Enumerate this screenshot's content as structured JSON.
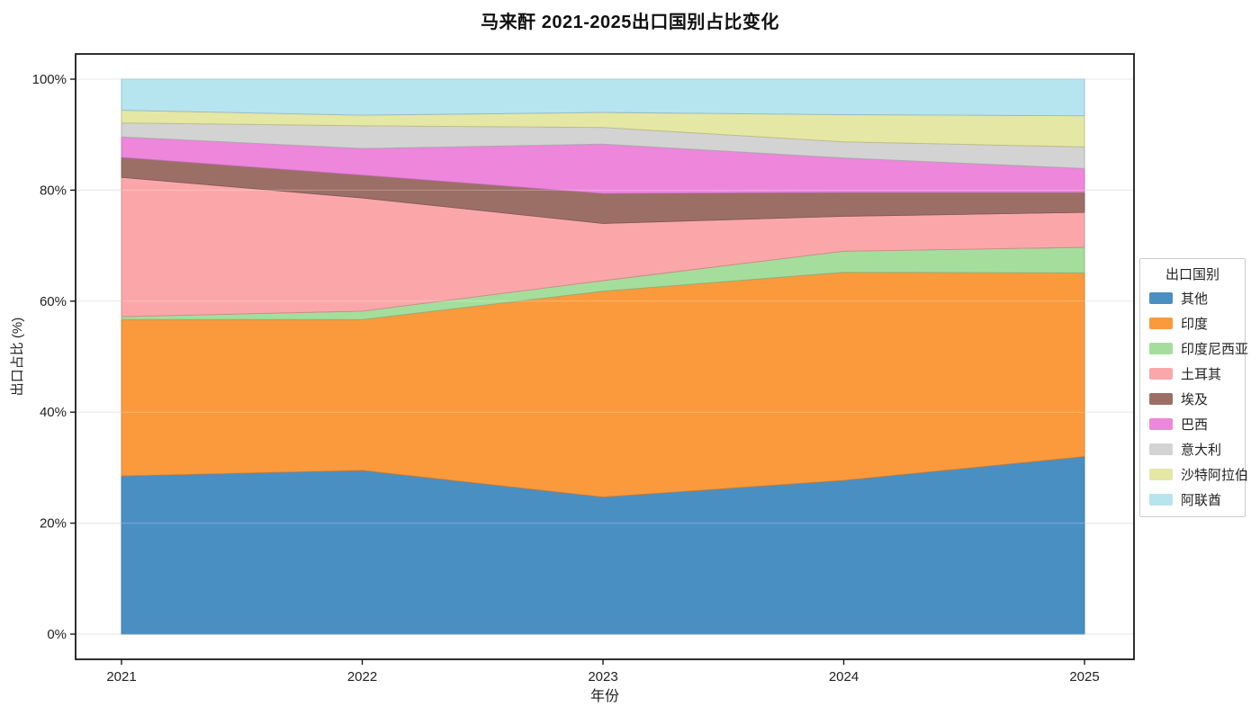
{
  "chart_data": {
    "type": "area",
    "stacked": true,
    "normalized": "100% stacked",
    "title": "马来酐 2021-2025出口国别占比变化",
    "xlabel": "年份",
    "ylabel": "出口占比 (%)",
    "legend_title": "出口国别",
    "legend_position": "right-outside",
    "grid": true,
    "categories": [
      "2021",
      "2022",
      "2023",
      "2024",
      "2025"
    ],
    "ylim": [
      0,
      100
    ],
    "ytick_labels": [
      "0%",
      "20%",
      "40%",
      "60%",
      "80%",
      "100%"
    ],
    "ytick_values": [
      0,
      20,
      40,
      60,
      80,
      100
    ],
    "series": [
      {
        "name": "其他",
        "color": "#4A8FC2",
        "values": [
          28.5,
          29.5,
          24.7,
          27.7,
          32.0
        ]
      },
      {
        "name": "印度",
        "color": "#FA9A3D",
        "values": [
          28.2,
          27.2,
          37.1,
          37.5,
          33.1
        ]
      },
      {
        "name": "印度尼西亚",
        "color": "#A5DE9C",
        "values": [
          0.5,
          1.5,
          1.9,
          3.8,
          4.6
        ]
      },
      {
        "name": "土耳其",
        "color": "#FBA7A9",
        "values": [
          25.1,
          20.4,
          10.3,
          6.3,
          6.3
        ]
      },
      {
        "name": "埃及",
        "color": "#9C6F66",
        "values": [
          3.6,
          4.1,
          5.4,
          4.3,
          3.6
        ]
      },
      {
        "name": "巴西",
        "color": "#EE86DC",
        "values": [
          3.7,
          4.8,
          8.9,
          6.2,
          4.3
        ]
      },
      {
        "name": "意大利",
        "color": "#D3D3D3",
        "values": [
          2.5,
          4.1,
          3.0,
          2.9,
          3.9
        ]
      },
      {
        "name": "沙特阿拉伯",
        "color": "#E5E7A4",
        "values": [
          2.3,
          1.9,
          2.7,
          4.9,
          5.6
        ]
      },
      {
        "name": "阿联酋",
        "color": "#B6E4EF",
        "values": [
          5.6,
          6.5,
          6.0,
          6.4,
          6.6
        ]
      }
    ],
    "colors": {
      "spine": "#1a1a1a",
      "grid": "#e4e4e4",
      "tick_text": "#222222",
      "background": "#ffffff"
    }
  }
}
